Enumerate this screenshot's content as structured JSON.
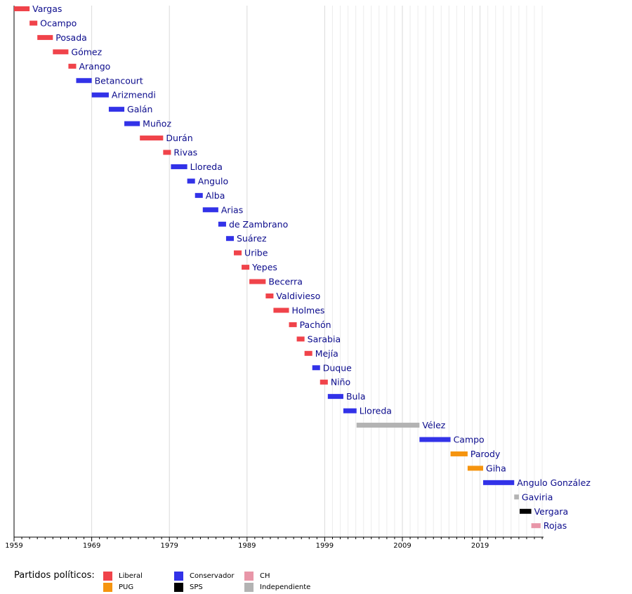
{
  "chart_data": {
    "type": "timeline",
    "x_ticks": [
      "1959",
      "1969",
      "1979",
      "1989",
      "1999",
      "2009",
      "2019"
    ],
    "xlim": [
      1959,
      2027
    ],
    "rows": [
      {
        "label": "Vargas",
        "start": 1959.0,
        "end": 1961.0,
        "party": "Liberal"
      },
      {
        "label": "Ocampo",
        "start": 1961.0,
        "end": 1962.0,
        "party": "Liberal"
      },
      {
        "label": "Posada",
        "start": 1962.0,
        "end": 1964.0,
        "party": "Liberal"
      },
      {
        "label": "Gómez",
        "start": 1964.0,
        "end": 1966.0,
        "party": "Liberal"
      },
      {
        "label": "Arango",
        "start": 1966.0,
        "end": 1967.0,
        "party": "Liberal"
      },
      {
        "label": "Betancourt",
        "start": 1967.0,
        "end": 1969.0,
        "party": "Conservador"
      },
      {
        "label": "Arizmendi",
        "start": 1969.0,
        "end": 1971.2,
        "party": "Conservador"
      },
      {
        "label": "Galán",
        "start": 1971.2,
        "end": 1973.2,
        "party": "Conservador"
      },
      {
        "label": "Muñoz",
        "start": 1973.2,
        "end": 1975.2,
        "party": "Conservador"
      },
      {
        "label": "Durán",
        "start": 1975.2,
        "end": 1978.2,
        "party": "Liberal"
      },
      {
        "label": "Rivas",
        "start": 1978.2,
        "end": 1979.2,
        "party": "Liberal"
      },
      {
        "label": "Lloreda",
        "start": 1979.2,
        "end": 1981.3,
        "party": "Conservador"
      },
      {
        "label": "Angulo",
        "start": 1981.3,
        "end": 1982.3,
        "party": "Conservador"
      },
      {
        "label": "Alba",
        "start": 1982.3,
        "end": 1983.3,
        "party": "Conservador"
      },
      {
        "label": "Arias",
        "start": 1983.3,
        "end": 1985.3,
        "party": "Conservador"
      },
      {
        "label": "de Zambrano",
        "start": 1985.3,
        "end": 1986.3,
        "party": "Conservador"
      },
      {
        "label": "Suárez",
        "start": 1986.3,
        "end": 1987.3,
        "party": "Conservador"
      },
      {
        "label": "Uribe",
        "start": 1987.3,
        "end": 1988.3,
        "party": "Liberal"
      },
      {
        "label": "Yepes",
        "start": 1988.3,
        "end": 1989.3,
        "party": "Liberal"
      },
      {
        "label": "Becerra",
        "start": 1989.3,
        "end": 1991.4,
        "party": "Liberal"
      },
      {
        "label": "Valdivieso",
        "start": 1991.4,
        "end": 1992.4,
        "party": "Liberal"
      },
      {
        "label": "Holmes",
        "start": 1992.4,
        "end": 1994.4,
        "party": "Liberal"
      },
      {
        "label": "Pachón",
        "start": 1994.4,
        "end": 1995.4,
        "party": "Liberal"
      },
      {
        "label": "Sarabia",
        "start": 1995.4,
        "end": 1996.4,
        "party": "Liberal"
      },
      {
        "label": "Mejía",
        "start": 1996.4,
        "end": 1997.4,
        "party": "Liberal"
      },
      {
        "label": "Duque",
        "start": 1997.4,
        "end": 1998.4,
        "party": "Conservador"
      },
      {
        "label": "Niño",
        "start": 1998.4,
        "end": 1999.4,
        "party": "Liberal"
      },
      {
        "label": "Bula",
        "start": 1999.4,
        "end": 2001.4,
        "party": "Conservador"
      },
      {
        "label": "Lloreda",
        "start": 2001.4,
        "end": 2003.1,
        "party": "Conservador"
      },
      {
        "label": "Vélez",
        "start": 2003.1,
        "end": 2011.2,
        "party": "Independiente"
      },
      {
        "label": "Campo",
        "start": 2011.2,
        "end": 2015.2,
        "party": "Conservador"
      },
      {
        "label": "Parody",
        "start": 2015.2,
        "end": 2017.4,
        "party": "PUG"
      },
      {
        "label": "Giha",
        "start": 2017.4,
        "end": 2019.4,
        "party": "PUG"
      },
      {
        "label": "Angulo González",
        "start": 2019.4,
        "end": 2023.4,
        "party": "Conservador"
      },
      {
        "label": "Gaviria",
        "start": 2023.4,
        "end": 2024.0,
        "party": "Independiente"
      },
      {
        "label": "Vergara",
        "start": 2024.1,
        "end": 2025.6,
        "party": "SPS"
      },
      {
        "label": "Rojas",
        "start": 2025.6,
        "end": 2026.8,
        "party": "CH"
      }
    ],
    "parties": {
      "Liberal": "#f0434a",
      "Conservador": "#3232e8",
      "CH": "#e896a8",
      "PUG": "#f5940f",
      "SPS": "#000000",
      "Independiente": "#b3b3b3"
    },
    "label_color": "#0b0b8c",
    "grid": true,
    "legend": "bottom-left"
  },
  "legend": {
    "title": "Partidos políticos:",
    "items": [
      {
        "label": "Liberal",
        "color": "#f0434a"
      },
      {
        "label": "PUG",
        "color": "#f5940f"
      },
      {
        "label": "Conservador",
        "color": "#3232e8"
      },
      {
        "label": "SPS",
        "color": "#000000"
      },
      {
        "label": "CH",
        "color": "#e896a8"
      },
      {
        "label": "Independiente",
        "color": "#b3b3b3"
      }
    ]
  }
}
